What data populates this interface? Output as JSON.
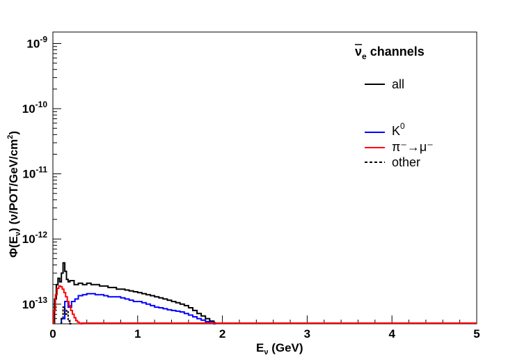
{
  "chart_data": {
    "type": "line",
    "title": "",
    "xlabel": "E_ν (GeV)",
    "ylabel": "Φ(E_ν)   (ν/POT/GeV/cm²)",
    "xlim": [
      0,
      5
    ],
    "ylim": [
      5e-14,
      1.5e-09
    ],
    "yscale": "log",
    "grid": false,
    "legend_position": "top-right",
    "x_ticks": [
      "0",
      "1",
      "2",
      "3",
      "4",
      "5"
    ],
    "y_ticks": [
      {
        "base": "10",
        "exp": "-13",
        "value": 1e-13
      },
      {
        "base": "10",
        "exp": "-12",
        "value": 1e-12
      },
      {
        "base": "10",
        "exp": "-11",
        "value": 1e-11
      },
      {
        "base": "10",
        "exp": "-10",
        "value": 1e-10
      },
      {
        "base": "10",
        "exp": "-9",
        "value": 1e-09
      }
    ],
    "legend_title": {
      "main": "ν",
      "sub": "e",
      "rest": " channels"
    },
    "series": [
      {
        "name": "all",
        "color": "#000000",
        "dash": "solid",
        "x": [
          0.02,
          0.04,
          0.06,
          0.08,
          0.1,
          0.12,
          0.14,
          0.16,
          0.18,
          0.2,
          0.25,
          0.3,
          0.35,
          0.4,
          0.45,
          0.5,
          0.55,
          0.6,
          0.65,
          0.7,
          0.75,
          0.8,
          0.85,
          0.9,
          0.95,
          1.0,
          1.05,
          1.1,
          1.15,
          1.2,
          1.25,
          1.3,
          1.35,
          1.4,
          1.45,
          1.5,
          1.55,
          1.6,
          1.65,
          1.7,
          1.75,
          1.8,
          1.85,
          1.9
        ],
        "y": [
          1.2e-13,
          2e-13,
          2.5e-13,
          2.2e-13,
          3e-13,
          4.3e-13,
          3.2e-13,
          2.4e-13,
          2.2e-13,
          2.3e-13,
          2e-13,
          2.1e-13,
          2e-13,
          2.1e-13,
          2e-13,
          2e-13,
          1.9e-13,
          1.9e-13,
          1.8e-13,
          1.8e-13,
          1.7e-13,
          1.7e-13,
          1.65e-13,
          1.6e-13,
          1.55e-13,
          1.5e-13,
          1.45e-13,
          1.4e-13,
          1.35e-13,
          1.3e-13,
          1.25e-13,
          1.2e-13,
          1.15e-13,
          1.1e-13,
          1.05e-13,
          1e-13,
          9.5e-14,
          8.8e-14,
          8e-14,
          7.2e-14,
          6.6e-14,
          6e-14,
          5.5e-14,
          5.2e-14
        ]
      },
      {
        "name": "K⁰",
        "color": "#0000ff",
        "dash": "solid",
        "x": [
          0.1,
          0.14,
          0.18,
          0.22,
          0.26,
          0.3,
          0.35,
          0.4,
          0.45,
          0.5,
          0.55,
          0.6,
          0.65,
          0.7,
          0.75,
          0.8,
          0.85,
          0.9,
          0.95,
          1.0,
          1.05,
          1.1,
          1.15,
          1.2,
          1.25,
          1.3,
          1.35,
          1.4,
          1.45,
          1.5,
          1.55,
          1.6,
          1.65,
          1.7,
          1.75,
          1.8,
          1.85,
          1.9
        ],
        "y": [
          6e-14,
          1.1e-13,
          9e-14,
          1.1e-13,
          1.2e-13,
          1.35e-13,
          1.4e-13,
          1.45e-13,
          1.45e-13,
          1.4e-13,
          1.4e-13,
          1.35e-13,
          1.3e-13,
          1.3e-13,
          1.3e-13,
          1.25e-13,
          1.2e-13,
          1.15e-13,
          1.1e-13,
          1.1e-13,
          1.05e-13,
          1e-13,
          9.5e-14,
          9e-14,
          8.8e-14,
          8.5e-14,
          8.2e-14,
          8e-14,
          7.8e-14,
          7.6e-14,
          7.2e-14,
          6.8e-14,
          6.4e-14,
          6e-14,
          5.7e-14,
          5.4e-14,
          5.2e-14,
          5e-14
        ]
      },
      {
        "name": "π⁻→μ⁻",
        "color": "#ff0000",
        "dash": "solid",
        "x": [
          0.01,
          0.03,
          0.05,
          0.07,
          0.09,
          0.11,
          0.13,
          0.15,
          0.17,
          0.19,
          0.21,
          0.23,
          0.25,
          0.27,
          0.29,
          0.31,
          0.33
        ],
        "y": [
          8e-14,
          1.4e-13,
          1.75e-13,
          1.9e-13,
          1.85e-13,
          1.7e-13,
          1.5e-13,
          1.3e-13,
          1.1e-13,
          9.5e-14,
          8e-14,
          7e-14,
          6.2e-14,
          5.6e-14,
          5.3e-14,
          5.1e-14,
          5e-14
        ]
      },
      {
        "name": "other",
        "color": "#000000",
        "dash": "dashed",
        "x": [
          0.1,
          0.12,
          0.14,
          0.16,
          0.18,
          0.2
        ],
        "y": [
          6e-14,
          9e-14,
          7e-14,
          8e-14,
          5.5e-14,
          5e-14
        ]
      }
    ],
    "baseline_line": {
      "color": "#ff0000",
      "x": [
        0.33,
        5.0
      ],
      "y": 5e-14
    }
  },
  "legend": [
    {
      "label": "all",
      "label_sup": "",
      "color": "#000000",
      "dash": "solid"
    },
    {
      "label": "K",
      "label_sup": "0",
      "color": "#0000ff",
      "dash": "solid"
    },
    {
      "label": "π⁻→μ⁻",
      "label_sup": "",
      "color": "#ff0000",
      "dash": "solid"
    },
    {
      "label": "other",
      "label_sup": "",
      "color": "#000000",
      "dash": "dashed"
    }
  ]
}
